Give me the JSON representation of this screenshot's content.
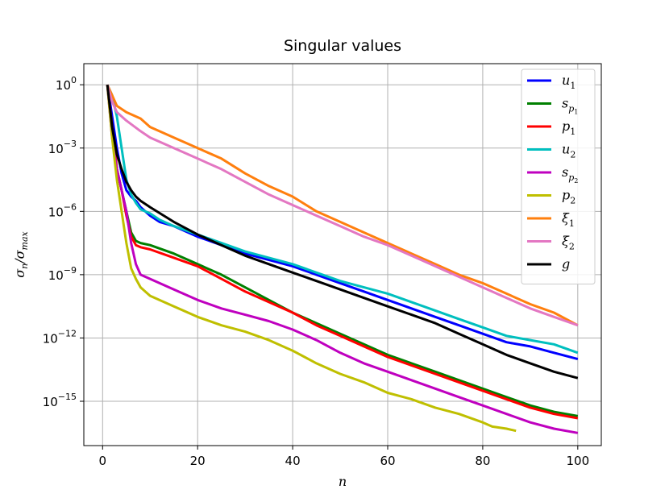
{
  "chart_data": {
    "type": "line",
    "title": "Singular values",
    "xlabel": "n",
    "ylabel": "σ_n/σ_max",
    "xlim": [
      -3.95,
      104.95
    ],
    "ylim_log10": [
      -17.1,
      1.0
    ],
    "yscale": "log",
    "grid": true,
    "legend_placement": "upper-right",
    "x_ticks": [
      0,
      20,
      40,
      60,
      80,
      100
    ],
    "y_ticks_exponent": [
      0,
      -3,
      -6,
      -9,
      -12,
      -15
    ],
    "y_tick_labels": [
      "10^0",
      "10^-3",
      "10^-6",
      "10^-9",
      "10^-12",
      "10^-15"
    ],
    "series": [
      {
        "name": "u1",
        "label_main": "u",
        "label_sub": "1",
        "color": "#0000ff",
        "points": [
          [
            1,
            0
          ],
          [
            2,
            -1.5
          ],
          [
            3,
            -3
          ],
          [
            4,
            -4.2
          ],
          [
            5,
            -5
          ],
          [
            6,
            -5.3
          ],
          [
            7,
            -5.5
          ],
          [
            8,
            -5.8
          ],
          [
            10,
            -6.2
          ],
          [
            12,
            -6.5
          ],
          [
            15,
            -6.7
          ],
          [
            20,
            -7.2
          ],
          [
            25,
            -7.6
          ],
          [
            30,
            -8.0
          ],
          [
            35,
            -8.3
          ],
          [
            40,
            -8.6
          ],
          [
            45,
            -9.0
          ],
          [
            50,
            -9.4
          ],
          [
            55,
            -9.8
          ],
          [
            60,
            -10.2
          ],
          [
            65,
            -10.6
          ],
          [
            70,
            -11.0
          ],
          [
            75,
            -11.4
          ],
          [
            80,
            -11.8
          ],
          [
            85,
            -12.2
          ],
          [
            90,
            -12.4
          ],
          [
            95,
            -12.7
          ],
          [
            100,
            -13.0
          ]
        ]
      },
      {
        "name": "s_p1",
        "label_main": "s",
        "label_sub": "p1",
        "color": "#008000",
        "points": [
          [
            1,
            0
          ],
          [
            2,
            -2
          ],
          [
            3,
            -4
          ],
          [
            4,
            -5
          ],
          [
            5,
            -6
          ],
          [
            6,
            -7
          ],
          [
            7,
            -7.4
          ],
          [
            8,
            -7.5
          ],
          [
            10,
            -7.6
          ],
          [
            15,
            -8.0
          ],
          [
            20,
            -8.5
          ],
          [
            25,
            -9.0
          ],
          [
            30,
            -9.6
          ],
          [
            35,
            -10.2
          ],
          [
            40,
            -10.8
          ],
          [
            45,
            -11.3
          ],
          [
            50,
            -11.8
          ],
          [
            55,
            -12.3
          ],
          [
            60,
            -12.8
          ],
          [
            65,
            -13.2
          ],
          [
            70,
            -13.6
          ],
          [
            75,
            -14.0
          ],
          [
            80,
            -14.4
          ],
          [
            85,
            -14.8
          ],
          [
            90,
            -15.2
          ],
          [
            95,
            -15.5
          ],
          [
            100,
            -15.7
          ]
        ]
      },
      {
        "name": "p1",
        "label_main": "p",
        "label_sub": "1",
        "color": "#ff0000",
        "points": [
          [
            1,
            0
          ],
          [
            2,
            -2
          ],
          [
            3,
            -4
          ],
          [
            4,
            -5
          ],
          [
            5,
            -6.2
          ],
          [
            6,
            -7.2
          ],
          [
            7,
            -7.6
          ],
          [
            8,
            -7.7
          ],
          [
            10,
            -7.8
          ],
          [
            15,
            -8.2
          ],
          [
            20,
            -8.6
          ],
          [
            25,
            -9.2
          ],
          [
            30,
            -9.8
          ],
          [
            35,
            -10.3
          ],
          [
            40,
            -10.8
          ],
          [
            45,
            -11.4
          ],
          [
            50,
            -11.9
          ],
          [
            55,
            -12.4
          ],
          [
            60,
            -12.9
          ],
          [
            65,
            -13.3
          ],
          [
            70,
            -13.7
          ],
          [
            75,
            -14.1
          ],
          [
            80,
            -14.5
          ],
          [
            85,
            -14.9
          ],
          [
            90,
            -15.3
          ],
          [
            95,
            -15.6
          ],
          [
            100,
            -15.8
          ]
        ]
      },
      {
        "name": "u2",
        "label_main": "u",
        "label_sub": "2",
        "color": "#00bfbf",
        "points": [
          [
            1,
            0
          ],
          [
            2,
            -0.5
          ],
          [
            3,
            -1.5
          ],
          [
            4,
            -3
          ],
          [
            5,
            -4.5
          ],
          [
            6,
            -5.2
          ],
          [
            7,
            -5.6
          ],
          [
            8,
            -5.9
          ],
          [
            10,
            -6.1
          ],
          [
            12,
            -6.4
          ],
          [
            15,
            -6.7
          ],
          [
            20,
            -7.1
          ],
          [
            25,
            -7.5
          ],
          [
            30,
            -7.9
          ],
          [
            35,
            -8.2
          ],
          [
            40,
            -8.5
          ],
          [
            45,
            -8.9
          ],
          [
            50,
            -9.3
          ],
          [
            55,
            -9.6
          ],
          [
            60,
            -9.9
          ],
          [
            65,
            -10.3
          ],
          [
            70,
            -10.7
          ],
          [
            75,
            -11.1
          ],
          [
            80,
            -11.5
          ],
          [
            85,
            -11.9
          ],
          [
            90,
            -12.1
          ],
          [
            95,
            -12.3
          ],
          [
            100,
            -12.7
          ]
        ]
      },
      {
        "name": "s_p2",
        "label_main": "s",
        "label_sub": "p2",
        "color": "#bf00bf",
        "points": [
          [
            1,
            0
          ],
          [
            2,
            -2.5
          ],
          [
            3,
            -4
          ],
          [
            4,
            -5
          ],
          [
            5,
            -6
          ],
          [
            6,
            -7.5
          ],
          [
            7,
            -8.5
          ],
          [
            8,
            -9.0
          ],
          [
            10,
            -9.2
          ],
          [
            15,
            -9.7
          ],
          [
            20,
            -10.2
          ],
          [
            25,
            -10.6
          ],
          [
            30,
            -10.9
          ],
          [
            35,
            -11.2
          ],
          [
            40,
            -11.6
          ],
          [
            45,
            -12.1
          ],
          [
            50,
            -12.7
          ],
          [
            55,
            -13.2
          ],
          [
            60,
            -13.6
          ],
          [
            65,
            -14.0
          ],
          [
            70,
            -14.4
          ],
          [
            75,
            -14.8
          ],
          [
            80,
            -15.2
          ],
          [
            85,
            -15.6
          ],
          [
            90,
            -16.0
          ],
          [
            95,
            -16.3
          ],
          [
            100,
            -16.5
          ]
        ]
      },
      {
        "name": "p2",
        "label_main": "p",
        "label_sub": "2",
        "color": "#bfbf00",
        "points": [
          [
            1,
            0
          ],
          [
            2,
            -2.5
          ],
          [
            3,
            -4.5
          ],
          [
            4,
            -6
          ],
          [
            5,
            -7.5
          ],
          [
            6,
            -8.7
          ],
          [
            7,
            -9.2
          ],
          [
            8,
            -9.6
          ],
          [
            10,
            -10.0
          ],
          [
            15,
            -10.5
          ],
          [
            20,
            -11.0
          ],
          [
            25,
            -11.4
          ],
          [
            30,
            -11.7
          ],
          [
            35,
            -12.1
          ],
          [
            40,
            -12.6
          ],
          [
            45,
            -13.2
          ],
          [
            50,
            -13.7
          ],
          [
            55,
            -14.1
          ],
          [
            60,
            -14.6
          ],
          [
            65,
            -14.9
          ],
          [
            70,
            -15.3
          ],
          [
            75,
            -15.6
          ],
          [
            80,
            -16.0
          ],
          [
            82,
            -16.2
          ],
          [
            85,
            -16.3
          ],
          [
            87,
            -16.4
          ]
        ]
      },
      {
        "name": "xi1",
        "label_main": "ξ",
        "label_sub": "1",
        "color": "#ff7f0e",
        "points": [
          [
            1,
            0
          ],
          [
            2,
            -0.5
          ],
          [
            3,
            -1.0
          ],
          [
            5,
            -1.3
          ],
          [
            8,
            -1.6
          ],
          [
            10,
            -2.0
          ],
          [
            15,
            -2.5
          ],
          [
            20,
            -3.0
          ],
          [
            25,
            -3.5
          ],
          [
            30,
            -4.2
          ],
          [
            35,
            -4.8
          ],
          [
            40,
            -5.3
          ],
          [
            45,
            -6.0
          ],
          [
            50,
            -6.5
          ],
          [
            55,
            -7.0
          ],
          [
            60,
            -7.5
          ],
          [
            65,
            -8.0
          ],
          [
            70,
            -8.5
          ],
          [
            75,
            -9.0
          ],
          [
            80,
            -9.4
          ],
          [
            85,
            -9.9
          ],
          [
            90,
            -10.4
          ],
          [
            95,
            -10.8
          ],
          [
            100,
            -11.4
          ]
        ]
      },
      {
        "name": "xi2",
        "label_main": "ξ",
        "label_sub": "2",
        "color": "#e377c2",
        "points": [
          [
            1,
            0
          ],
          [
            2,
            -0.8
          ],
          [
            3,
            -1.3
          ],
          [
            5,
            -1.7
          ],
          [
            8,
            -2.2
          ],
          [
            10,
            -2.5
          ],
          [
            15,
            -3.0
          ],
          [
            20,
            -3.5
          ],
          [
            25,
            -4.0
          ],
          [
            30,
            -4.6
          ],
          [
            35,
            -5.2
          ],
          [
            40,
            -5.7
          ],
          [
            45,
            -6.2
          ],
          [
            50,
            -6.7
          ],
          [
            55,
            -7.2
          ],
          [
            60,
            -7.6
          ],
          [
            65,
            -8.1
          ],
          [
            70,
            -8.6
          ],
          [
            75,
            -9.1
          ],
          [
            80,
            -9.6
          ],
          [
            85,
            -10.1
          ],
          [
            90,
            -10.6
          ],
          [
            95,
            -11.0
          ],
          [
            100,
            -11.4
          ]
        ]
      },
      {
        "name": "g",
        "label_main": "g",
        "label_sub": "",
        "color": "#000000",
        "points": [
          [
            1,
            0
          ],
          [
            2,
            -2
          ],
          [
            3,
            -3.3
          ],
          [
            4,
            -4
          ],
          [
            5,
            -4.6
          ],
          [
            6,
            -5.0
          ],
          [
            7,
            -5.3
          ],
          [
            8,
            -5.5
          ],
          [
            10,
            -5.8
          ],
          [
            15,
            -6.5
          ],
          [
            20,
            -7.1
          ],
          [
            25,
            -7.6
          ],
          [
            30,
            -8.1
          ],
          [
            35,
            -8.5
          ],
          [
            40,
            -8.9
          ],
          [
            45,
            -9.3
          ],
          [
            50,
            -9.7
          ],
          [
            55,
            -10.1
          ],
          [
            60,
            -10.5
          ],
          [
            65,
            -10.9
          ],
          [
            70,
            -11.3
          ],
          [
            75,
            -11.8
          ],
          [
            80,
            -12.3
          ],
          [
            85,
            -12.8
          ],
          [
            90,
            -13.2
          ],
          [
            95,
            -13.6
          ],
          [
            100,
            -13.9
          ]
        ]
      }
    ]
  }
}
